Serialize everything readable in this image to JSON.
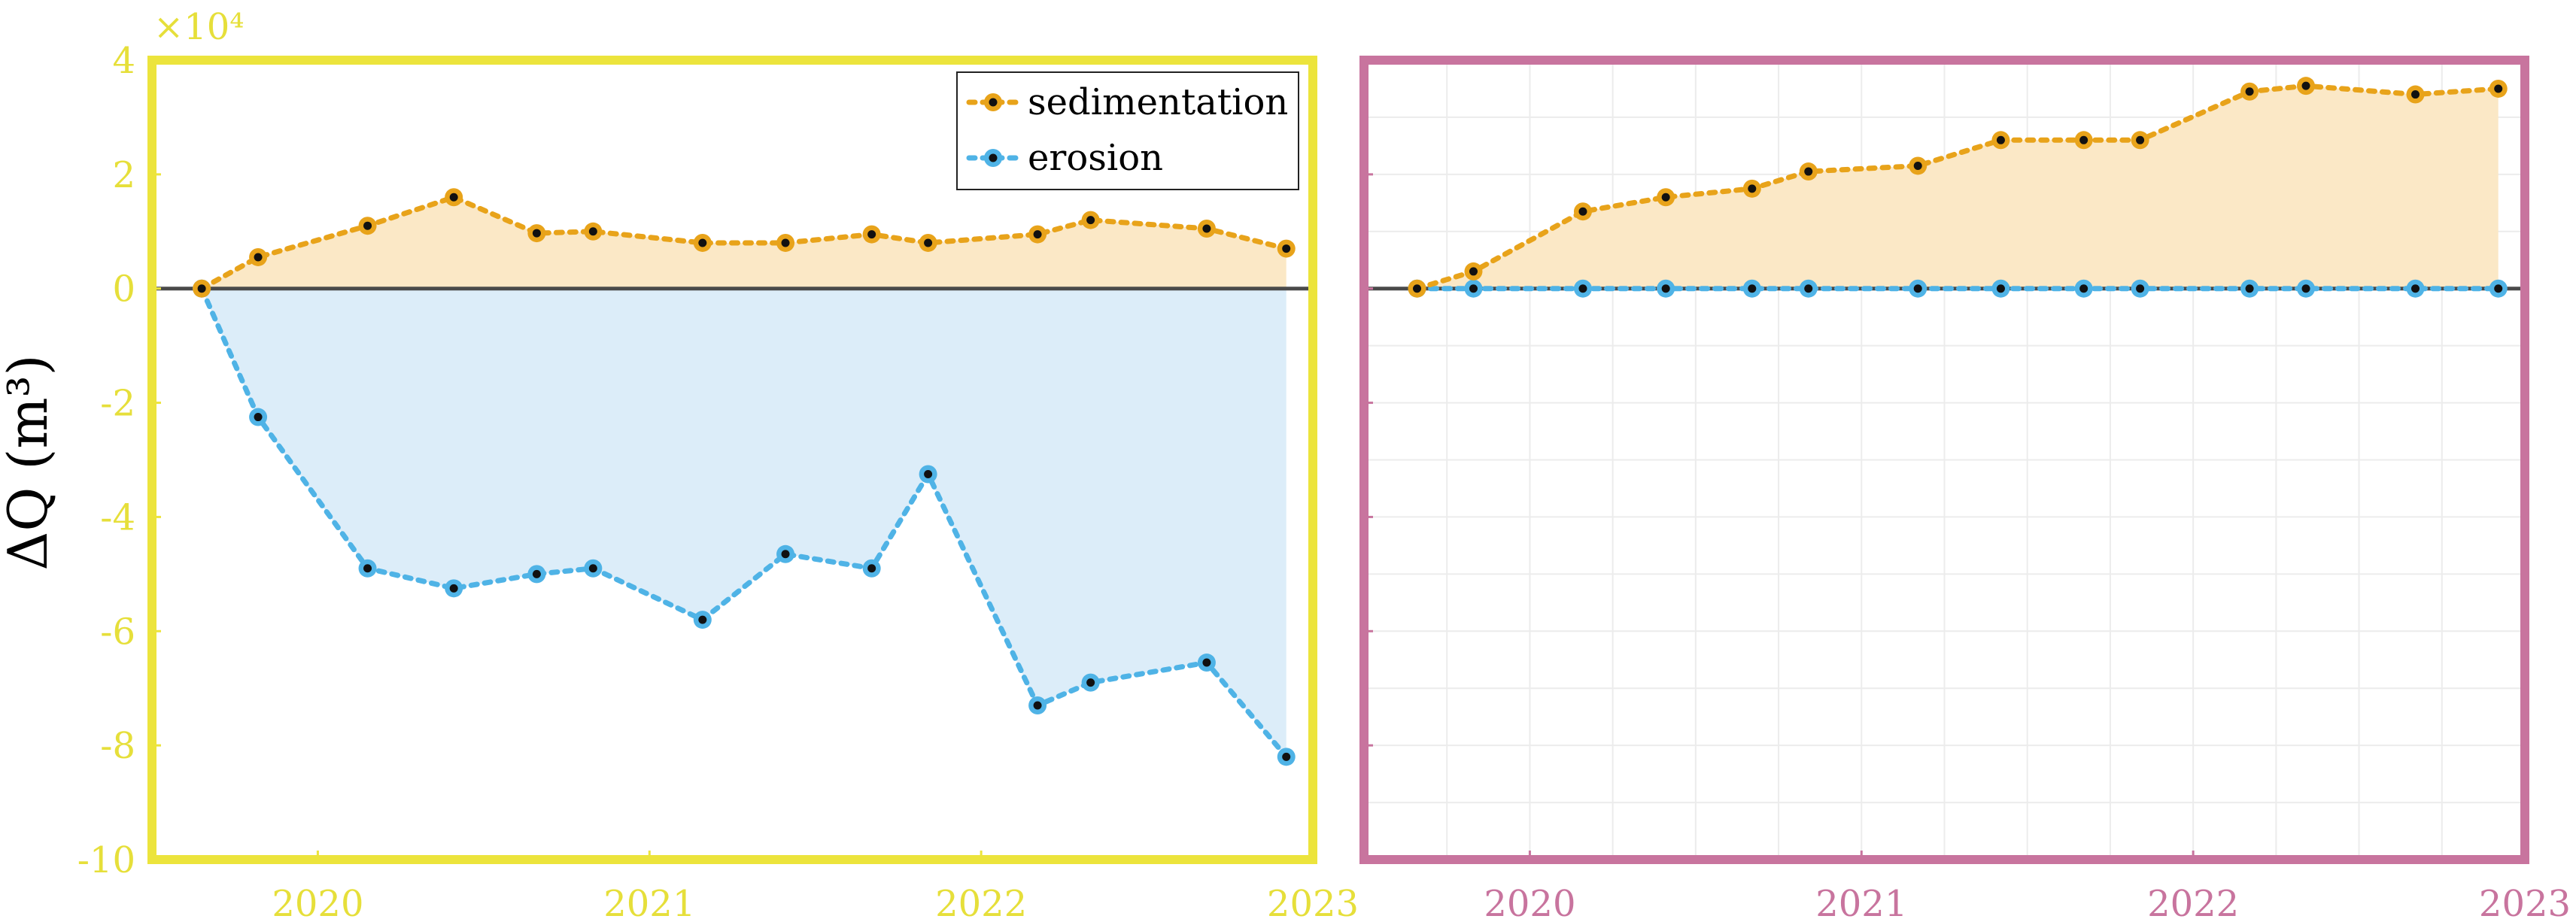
{
  "chart_data": [
    {
      "type": "area",
      "panel": "left",
      "frame_color": "#ece43c",
      "tick_color": "#e6df3a",
      "ylabel": "ΔQ (m³)",
      "y_exponent_label": "×10⁴",
      "ylim": [
        -10,
        4
      ],
      "yticks": [
        4,
        2,
        0,
        -2,
        -4,
        -6,
        -8,
        -10
      ],
      "ytick_labels": [
        "4",
        "2",
        "0",
        "-2",
        "-4",
        "-6",
        "-8",
        "-10"
      ],
      "xlim": [
        2019.5,
        2023.0
      ],
      "xticks": [
        2020,
        2021,
        2022,
        2023
      ],
      "xtick_labels": [
        "2020",
        "2021",
        "2022",
        "2023"
      ],
      "grid": false,
      "legend": {
        "position": "top-right",
        "entries": [
          "sedimentation",
          "erosion"
        ]
      },
      "series": [
        {
          "name": "sedimentation",
          "color": "#e8a31a",
          "fill": "#fbe8c6",
          "x": [
            2019.65,
            2019.82,
            2020.15,
            2020.41,
            2020.66,
            2020.83,
            2021.16,
            2021.41,
            2021.67,
            2021.84,
            2022.17,
            2022.33,
            2022.68,
            2022.92
          ],
          "values": [
            0,
            0.55,
            1.1,
            1.6,
            0.97,
            1.0,
            0.8,
            0.8,
            0.95,
            0.8,
            0.95,
            1.2,
            1.05,
            0.7
          ]
        },
        {
          "name": "erosion",
          "color": "#4fb3e6",
          "fill": "#dcedf9",
          "x": [
            2019.65,
            2019.82,
            2020.15,
            2020.41,
            2020.66,
            2020.83,
            2021.16,
            2021.41,
            2021.67,
            2021.84,
            2022.17,
            2022.33,
            2022.68,
            2022.92
          ],
          "values": [
            0,
            -2.25,
            -4.9,
            -5.25,
            -5.0,
            -4.9,
            -5.8,
            -4.65,
            -4.9,
            -3.25,
            -7.3,
            -6.9,
            -6.55,
            -8.2
          ]
        }
      ]
    },
    {
      "type": "area",
      "panel": "right",
      "frame_color": "#c8749e",
      "tick_color": "#c8749e",
      "ylim": [
        -10,
        4
      ],
      "xlim": [
        2019.5,
        2023.0
      ],
      "xticks": [
        2020,
        2021,
        2022,
        2023
      ],
      "xtick_labels": [
        "2020",
        "2021",
        "2022",
        "2023"
      ],
      "grid": true,
      "series": [
        {
          "name": "sedimentation",
          "color": "#e8a31a",
          "fill": "#fbe8c6",
          "x": [
            2019.66,
            2019.83,
            2020.16,
            2020.41,
            2020.67,
            2020.84,
            2021.17,
            2021.42,
            2021.67,
            2021.84,
            2022.17,
            2022.34,
            2022.67,
            2022.92
          ],
          "values": [
            0,
            0.3,
            1.35,
            1.6,
            1.75,
            2.05,
            2.15,
            2.6,
            2.6,
            2.6,
            3.45,
            3.55,
            3.4,
            3.5
          ]
        },
        {
          "name": "erosion",
          "color": "#4fb3e6",
          "fill": "#dcedf9",
          "x": [
            2019.66,
            2019.83,
            2020.16,
            2020.41,
            2020.67,
            2020.84,
            2021.17,
            2021.42,
            2021.67,
            2021.84,
            2022.17,
            2022.34,
            2022.67,
            2022.92
          ],
          "values": [
            0,
            0,
            0,
            0,
            0,
            0,
            0,
            0,
            0,
            0,
            0,
            0,
            0,
            0
          ]
        }
      ]
    }
  ]
}
